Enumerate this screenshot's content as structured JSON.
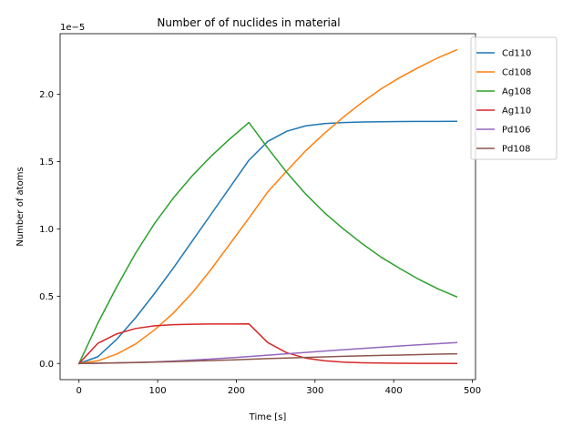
{
  "chart_data": {
    "type": "line",
    "title": "Number of of nuclides in material",
    "xlabel": "Time [s]",
    "ylabel": "Number of atoms",
    "y_offset_text": "1e−5",
    "y_scale_factor": 1e-05,
    "xlim": [
      -24,
      504
    ],
    "ylim": [
      -0.12,
      2.45
    ],
    "xticks": [
      0,
      100,
      200,
      300,
      400,
      500
    ],
    "yticks": [
      0.0,
      0.5,
      1.0,
      1.5,
      2.0
    ],
    "ytick_labels": [
      "0.0",
      "0.5",
      "1.0",
      "1.5",
      "2.0"
    ],
    "grid": false,
    "legend_position": "outside-upper-right",
    "x": [
      0,
      24,
      48,
      72,
      96,
      120,
      144,
      168,
      192,
      216,
      240,
      264,
      288,
      312,
      336,
      360,
      384,
      408,
      432,
      456,
      480
    ],
    "series": [
      {
        "name": "Cd110",
        "color": "#1f77b4",
        "values": [
          0,
          0.05,
          0.18,
          0.34,
          0.52,
          0.71,
          0.91,
          1.11,
          1.31,
          1.51,
          1.65,
          1.725,
          1.765,
          1.782,
          1.79,
          1.794,
          1.796,
          1.797,
          1.798,
          1.798,
          1.799
        ]
      },
      {
        "name": "Cd108",
        "color": "#ff7f0e",
        "values": [
          0,
          0.02,
          0.07,
          0.145,
          0.25,
          0.375,
          0.525,
          0.7,
          0.89,
          1.08,
          1.275,
          1.43,
          1.58,
          1.71,
          1.83,
          1.94,
          2.04,
          2.125,
          2.2,
          2.27,
          2.33
        ]
      },
      {
        "name": "Ag108",
        "color": "#2ca02c",
        "values": [
          0,
          0.3,
          0.57,
          0.82,
          1.04,
          1.23,
          1.395,
          1.54,
          1.67,
          1.79,
          1.6,
          1.42,
          1.26,
          1.12,
          1.0,
          0.89,
          0.79,
          0.705,
          0.625,
          0.555,
          0.495
        ]
      },
      {
        "name": "Ag110",
        "color": "#d62728",
        "values": [
          0,
          0.15,
          0.22,
          0.26,
          0.28,
          0.288,
          0.292,
          0.293,
          0.293,
          0.294,
          0.155,
          0.08,
          0.04,
          0.02,
          0.01,
          0.005,
          0.003,
          0.002,
          0.001,
          0.0005,
          0.0003
        ]
      },
      {
        "name": "Pd106",
        "color": "#9467bd",
        "values": [
          0,
          0.002,
          0.005,
          0.008,
          0.012,
          0.018,
          0.025,
          0.033,
          0.042,
          0.052,
          0.062,
          0.072,
          0.082,
          0.092,
          0.102,
          0.112,
          0.121,
          0.13,
          0.139,
          0.147,
          0.155
        ]
      },
      {
        "name": "Pd108",
        "color": "#8c564b",
        "values": [
          0,
          0.002,
          0.004,
          0.007,
          0.01,
          0.014,
          0.018,
          0.022,
          0.026,
          0.031,
          0.036,
          0.041,
          0.045,
          0.049,
          0.053,
          0.057,
          0.06,
          0.063,
          0.066,
          0.069,
          0.072
        ]
      }
    ]
  }
}
